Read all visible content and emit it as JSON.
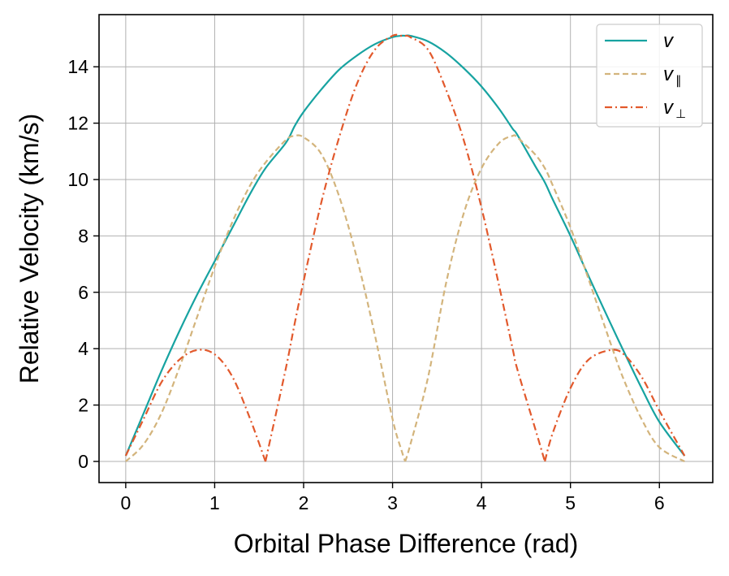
{
  "chart_data": {
    "type": "line",
    "title": "",
    "xlabel": "Orbital Phase Difference (rad)",
    "ylabel": "Relative Velocity (km/s)",
    "xlim": [
      -0.3,
      6.6
    ],
    "ylim": [
      -0.75,
      15.85
    ],
    "xticks": [
      0,
      1,
      2,
      3,
      4,
      5,
      6
    ],
    "yticks": [
      0,
      2,
      4,
      6,
      8,
      10,
      12,
      14
    ],
    "grid": true,
    "legend_position": "top-right",
    "x": [
      0.0,
      0.2,
      0.4,
      0.6,
      0.8,
      1.0,
      1.2,
      1.4,
      1.571,
      1.8,
      1.9,
      2.0,
      2.2,
      2.4,
      2.6,
      2.8,
      3.0,
      3.1,
      3.142,
      3.2,
      3.4,
      3.6,
      3.8,
      4.0,
      4.2,
      4.35,
      4.4,
      4.6,
      4.712,
      4.8,
      5.0,
      5.2,
      5.45,
      5.6,
      5.8,
      6.0,
      6.283
    ],
    "series": [
      {
        "name": "v",
        "label_main": "v",
        "label_sub": "",
        "color": "#17a3a1",
        "dash": "solid",
        "values": [
          0.2,
          1.7,
          3.2,
          4.6,
          5.9,
          7.1,
          8.3,
          9.5,
          10.4,
          11.3,
          11.9,
          12.4,
          13.2,
          13.9,
          14.4,
          14.8,
          15.05,
          15.1,
          15.1,
          15.1,
          14.9,
          14.5,
          13.95,
          13.3,
          12.5,
          11.8,
          11.6,
          10.5,
          9.9,
          9.3,
          8.0,
          6.6,
          4.9,
          3.9,
          2.6,
          1.4,
          0.2
        ]
      },
      {
        "name": "v parallel",
        "label_main": "v",
        "label_sub": "∥",
        "color": "#d3b47c",
        "dash": "dashed",
        "values": [
          0.0,
          0.6,
          1.7,
          3.3,
          5.1,
          6.9,
          8.5,
          9.8,
          10.6,
          11.4,
          11.55,
          11.5,
          10.9,
          9.4,
          7.2,
          4.5,
          1.5,
          0.4,
          0.0,
          0.6,
          3.0,
          6.3,
          8.8,
          10.4,
          11.3,
          11.55,
          11.5,
          10.9,
          10.4,
          9.8,
          8.3,
          6.5,
          4.2,
          2.9,
          1.5,
          0.5,
          0.0
        ]
      },
      {
        "name": "v perpendicular",
        "label_main": "v",
        "label_sub": "⊥",
        "color": "#e2592c",
        "dash": "dashdot",
        "values": [
          0.2,
          1.5,
          2.8,
          3.6,
          3.95,
          3.8,
          3.0,
          1.5,
          0.0,
          3.3,
          4.9,
          6.4,
          9.2,
          11.5,
          13.4,
          14.6,
          15.1,
          15.1,
          15.1,
          15.05,
          14.6,
          13.2,
          11.4,
          9.0,
          6.2,
          4.0,
          3.3,
          1.2,
          0.0,
          1.0,
          2.6,
          3.6,
          3.95,
          3.8,
          3.0,
          1.8,
          0.2
        ]
      }
    ]
  }
}
